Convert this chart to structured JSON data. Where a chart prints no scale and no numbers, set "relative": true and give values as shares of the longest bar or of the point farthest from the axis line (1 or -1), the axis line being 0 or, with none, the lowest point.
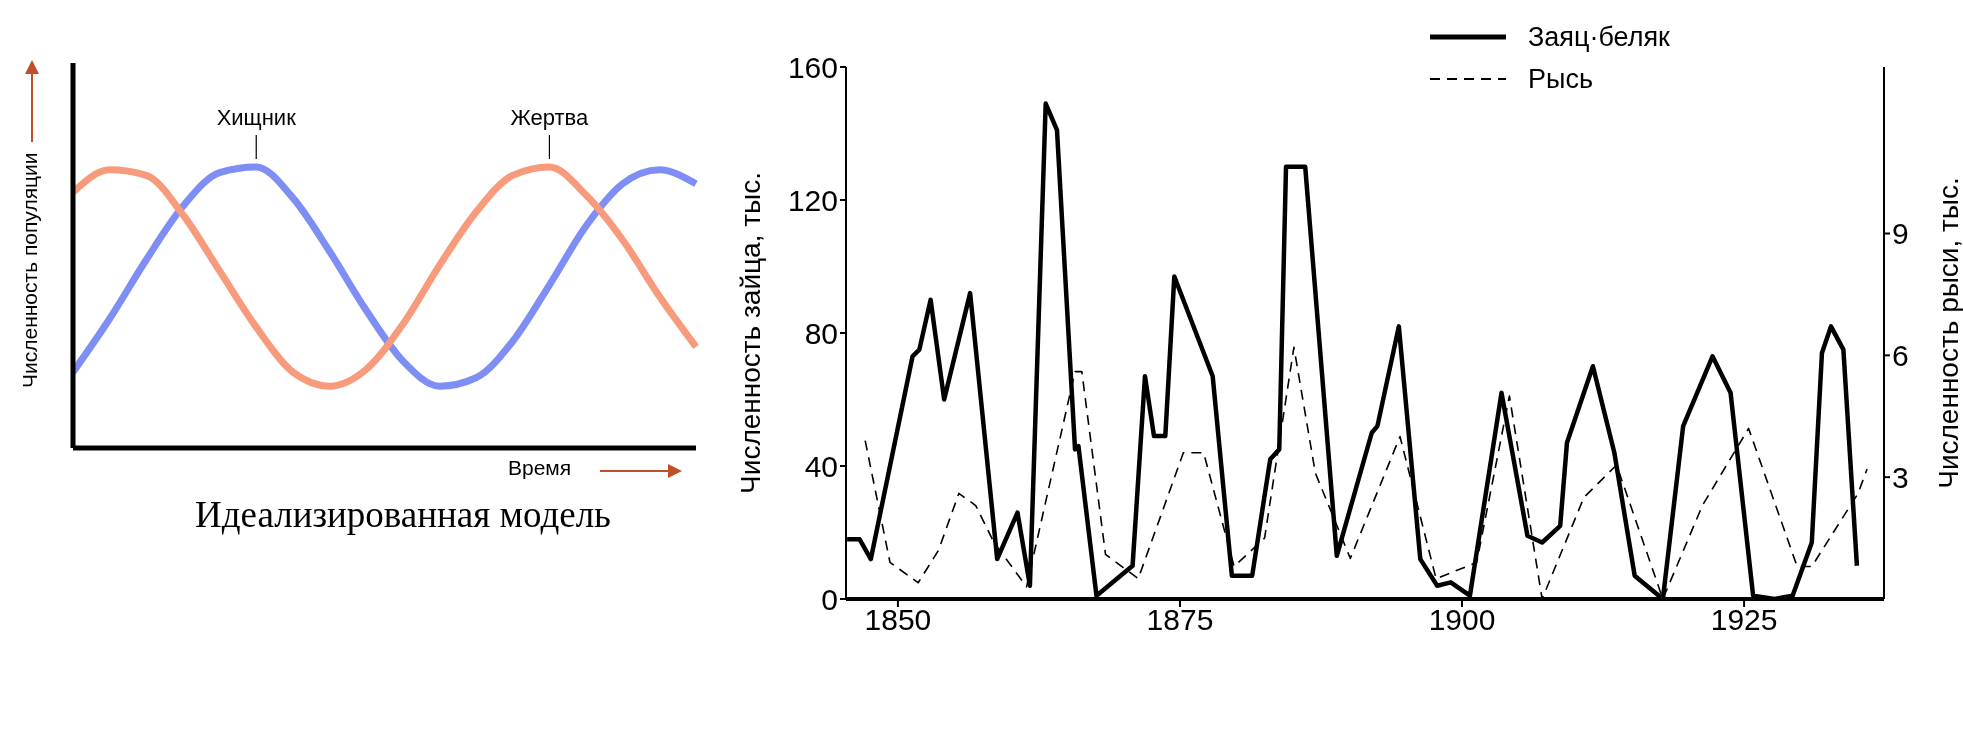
{
  "chart_data": [
    {
      "type": "line",
      "relative": true,
      "xlabel": "Время",
      "ylabel": "Численность популяции",
      "annotations": [
        "Идеализированная модель"
      ],
      "categories": [
        null,
        null,
        null,
        null,
        null,
        null,
        null,
        null,
        null,
        null,
        null,
        null,
        null,
        null,
        null,
        null,
        null,
        null
      ],
      "series": [
        {
          "name": "Хищник",
          "color": "#7f8ef5",
          "values": [
            0.27,
            0.46,
            0.67,
            0.86,
            0.98,
            1.0,
            0.89,
            0.7,
            0.49,
            0.31,
            0.22,
            0.25,
            0.38,
            0.58,
            0.79,
            0.94,
            0.99,
            0.94
          ]
        },
        {
          "name": "Жертва",
          "color": "#f89b7c",
          "values": [
            0.91,
            0.99,
            0.97,
            0.83,
            0.63,
            0.43,
            0.27,
            0.22,
            0.28,
            0.44,
            0.65,
            0.84,
            0.97,
            1.0,
            0.9,
            0.74,
            0.54,
            0.36
          ]
        }
      ]
    },
    {
      "type": "line",
      "ylabel": "Численность зайца, тыс.",
      "y2label": "Численность рыси, тыс.",
      "legend": "top right",
      "xlim": [
        1845.4,
        1937.4
      ],
      "xticks": [
        1850,
        1875,
        1900,
        1925
      ],
      "ylim": [
        0,
        160
      ],
      "yticks": [
        0,
        40,
        80,
        120,
        160
      ],
      "y2lim": [
        0,
        13.1
      ],
      "y2ticks": [
        3,
        6,
        9
      ],
      "series": [
        {
          "name": "Заяц·беляк",
          "color": "#000000",
          "line_style": "solid",
          "x": [
            1845.5,
            1846.6,
            1847.6,
            1851.3,
            1851.9,
            1852.9,
            1854.1,
            1856.4,
            1858.8,
            1860.6,
            1861.7,
            1863.1,
            1864.1,
            1865.7,
            1866.0,
            1867.6,
            1870.8,
            1871.9,
            1872.7,
            1873.7,
            1874.5,
            1877.9,
            1879.6,
            1881.4,
            1883.0,
            1883.8,
            1884.4,
            1886.1,
            1888.9,
            1892.0,
            1892.5,
            1894.4,
            1896.3,
            1897.8,
            1899.0,
            1900.7,
            1903.5,
            1905.8,
            1907.1,
            1908.7,
            1909.3,
            1911.6,
            1913.5,
            1915.3,
            1917.8,
            1919.6,
            1922.2,
            1923.8,
            1925.8,
            1927.7,
            1929.3,
            1931.0,
            1931.9,
            1932.7,
            1933.8,
            1935.0
          ],
          "values": [
            18,
            18,
            12,
            73,
            75,
            90,
            60,
            92,
            12,
            26,
            4,
            149,
            141,
            45,
            46,
            1,
            10,
            67,
            49,
            49,
            97,
            67,
            7,
            7,
            42,
            45,
            130,
            130,
            13,
            50,
            52,
            82,
            12,
            4,
            5,
            1,
            62,
            19,
            17,
            22,
            47,
            70,
            44,
            7,
            0,
            52,
            73,
            62,
            1,
            0,
            1,
            17,
            74,
            82,
            75,
            10
          ]
        },
        {
          "name": "Рысь",
          "color": "#000000",
          "line_style": "dashed",
          "axis": "y2",
          "x": [
            1847.1,
            1849.3,
            1851.8,
            1853.6,
            1855.4,
            1856.9,
            1858.5,
            1861.4,
            1865.7,
            1866.3,
            1868.4,
            1871.3,
            1875.3,
            1877.1,
            1879.8,
            1882.5,
            1885.1,
            1887.0,
            1890.1,
            1894.5,
            1897.7,
            1901.3,
            1904.2,
            1907.1,
            1910.8,
            1913.7,
            1917.8,
            1921.3,
            1925.4,
            1929.7,
            1931.0,
            1935.1,
            1935.9
          ],
          "values": [
            3.9,
            0.9,
            0.4,
            1.2,
            2.6,
            2.3,
            1.4,
            0.3,
            5.6,
            5.6,
            1.1,
            0.5,
            3.6,
            3.6,
            0.8,
            1.5,
            6.2,
            3.1,
            1.0,
            4.0,
            0.5,
            0.9,
            5.0,
            0,
            2.5,
            3.3,
            0,
            2.3,
            4.2,
            0.8,
            0.8,
            2.6,
            3.2
          ]
        }
      ]
    }
  ]
}
